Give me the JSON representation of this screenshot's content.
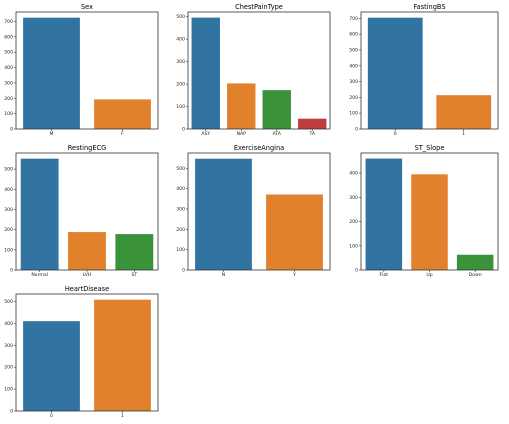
{
  "palette": [
    "#3274a1",
    "#e1812c",
    "#3a923a",
    "#c03d3e"
  ],
  "chart_data": [
    {
      "type": "bar",
      "title": "Sex",
      "categories": [
        "M",
        "F"
      ],
      "values": [
        725,
        193
      ],
      "ylim": [
        0,
        762
      ],
      "yticks": [
        0,
        100,
        200,
        300,
        400,
        500,
        600,
        700
      ],
      "grid": false
    },
    {
      "type": "bar",
      "title": "ChestPainType",
      "categories": [
        "ASY",
        "NAP",
        "ATA",
        "TA"
      ],
      "values": [
        496,
        203,
        173,
        46
      ],
      "ylim": [
        0,
        521
      ],
      "yticks": [
        0,
        100,
        200,
        300,
        400,
        500
      ],
      "grid": false
    },
    {
      "type": "bar",
      "title": "FastingBS",
      "categories": [
        "0",
        "1"
      ],
      "values": [
        704,
        214
      ],
      "ylim": [
        0,
        740
      ],
      "yticks": [
        0,
        100,
        200,
        300,
        400,
        500,
        600,
        700
      ],
      "grid": false
    },
    {
      "type": "bar",
      "title": "RestingECG",
      "categories": [
        "Normal",
        "LVH",
        "ST"
      ],
      "values": [
        552,
        188,
        178
      ],
      "ylim": [
        0,
        580
      ],
      "yticks": [
        0,
        100,
        200,
        300,
        400,
        500
      ],
      "grid": false
    },
    {
      "type": "bar",
      "title": "ExerciseAngina",
      "categories": [
        "N",
        "Y"
      ],
      "values": [
        547,
        371
      ],
      "ylim": [
        0,
        575
      ],
      "yticks": [
        0,
        100,
        200,
        300,
        400,
        500
      ],
      "grid": false
    },
    {
      "type": "bar",
      "title": "ST_Slope",
      "categories": [
        "Flat",
        "Up",
        "Down"
      ],
      "values": [
        460,
        395,
        63
      ],
      "ylim": [
        0,
        483
      ],
      "yticks": [
        0,
        100,
        200,
        300,
        400
      ],
      "grid": false
    },
    {
      "type": "bar",
      "title": "HeartDisease",
      "categories": [
        "0",
        "1"
      ],
      "values": [
        410,
        508
      ],
      "ylim": [
        0,
        534
      ],
      "yticks": [
        0,
        100,
        200,
        300,
        400,
        500
      ],
      "grid": false
    }
  ]
}
